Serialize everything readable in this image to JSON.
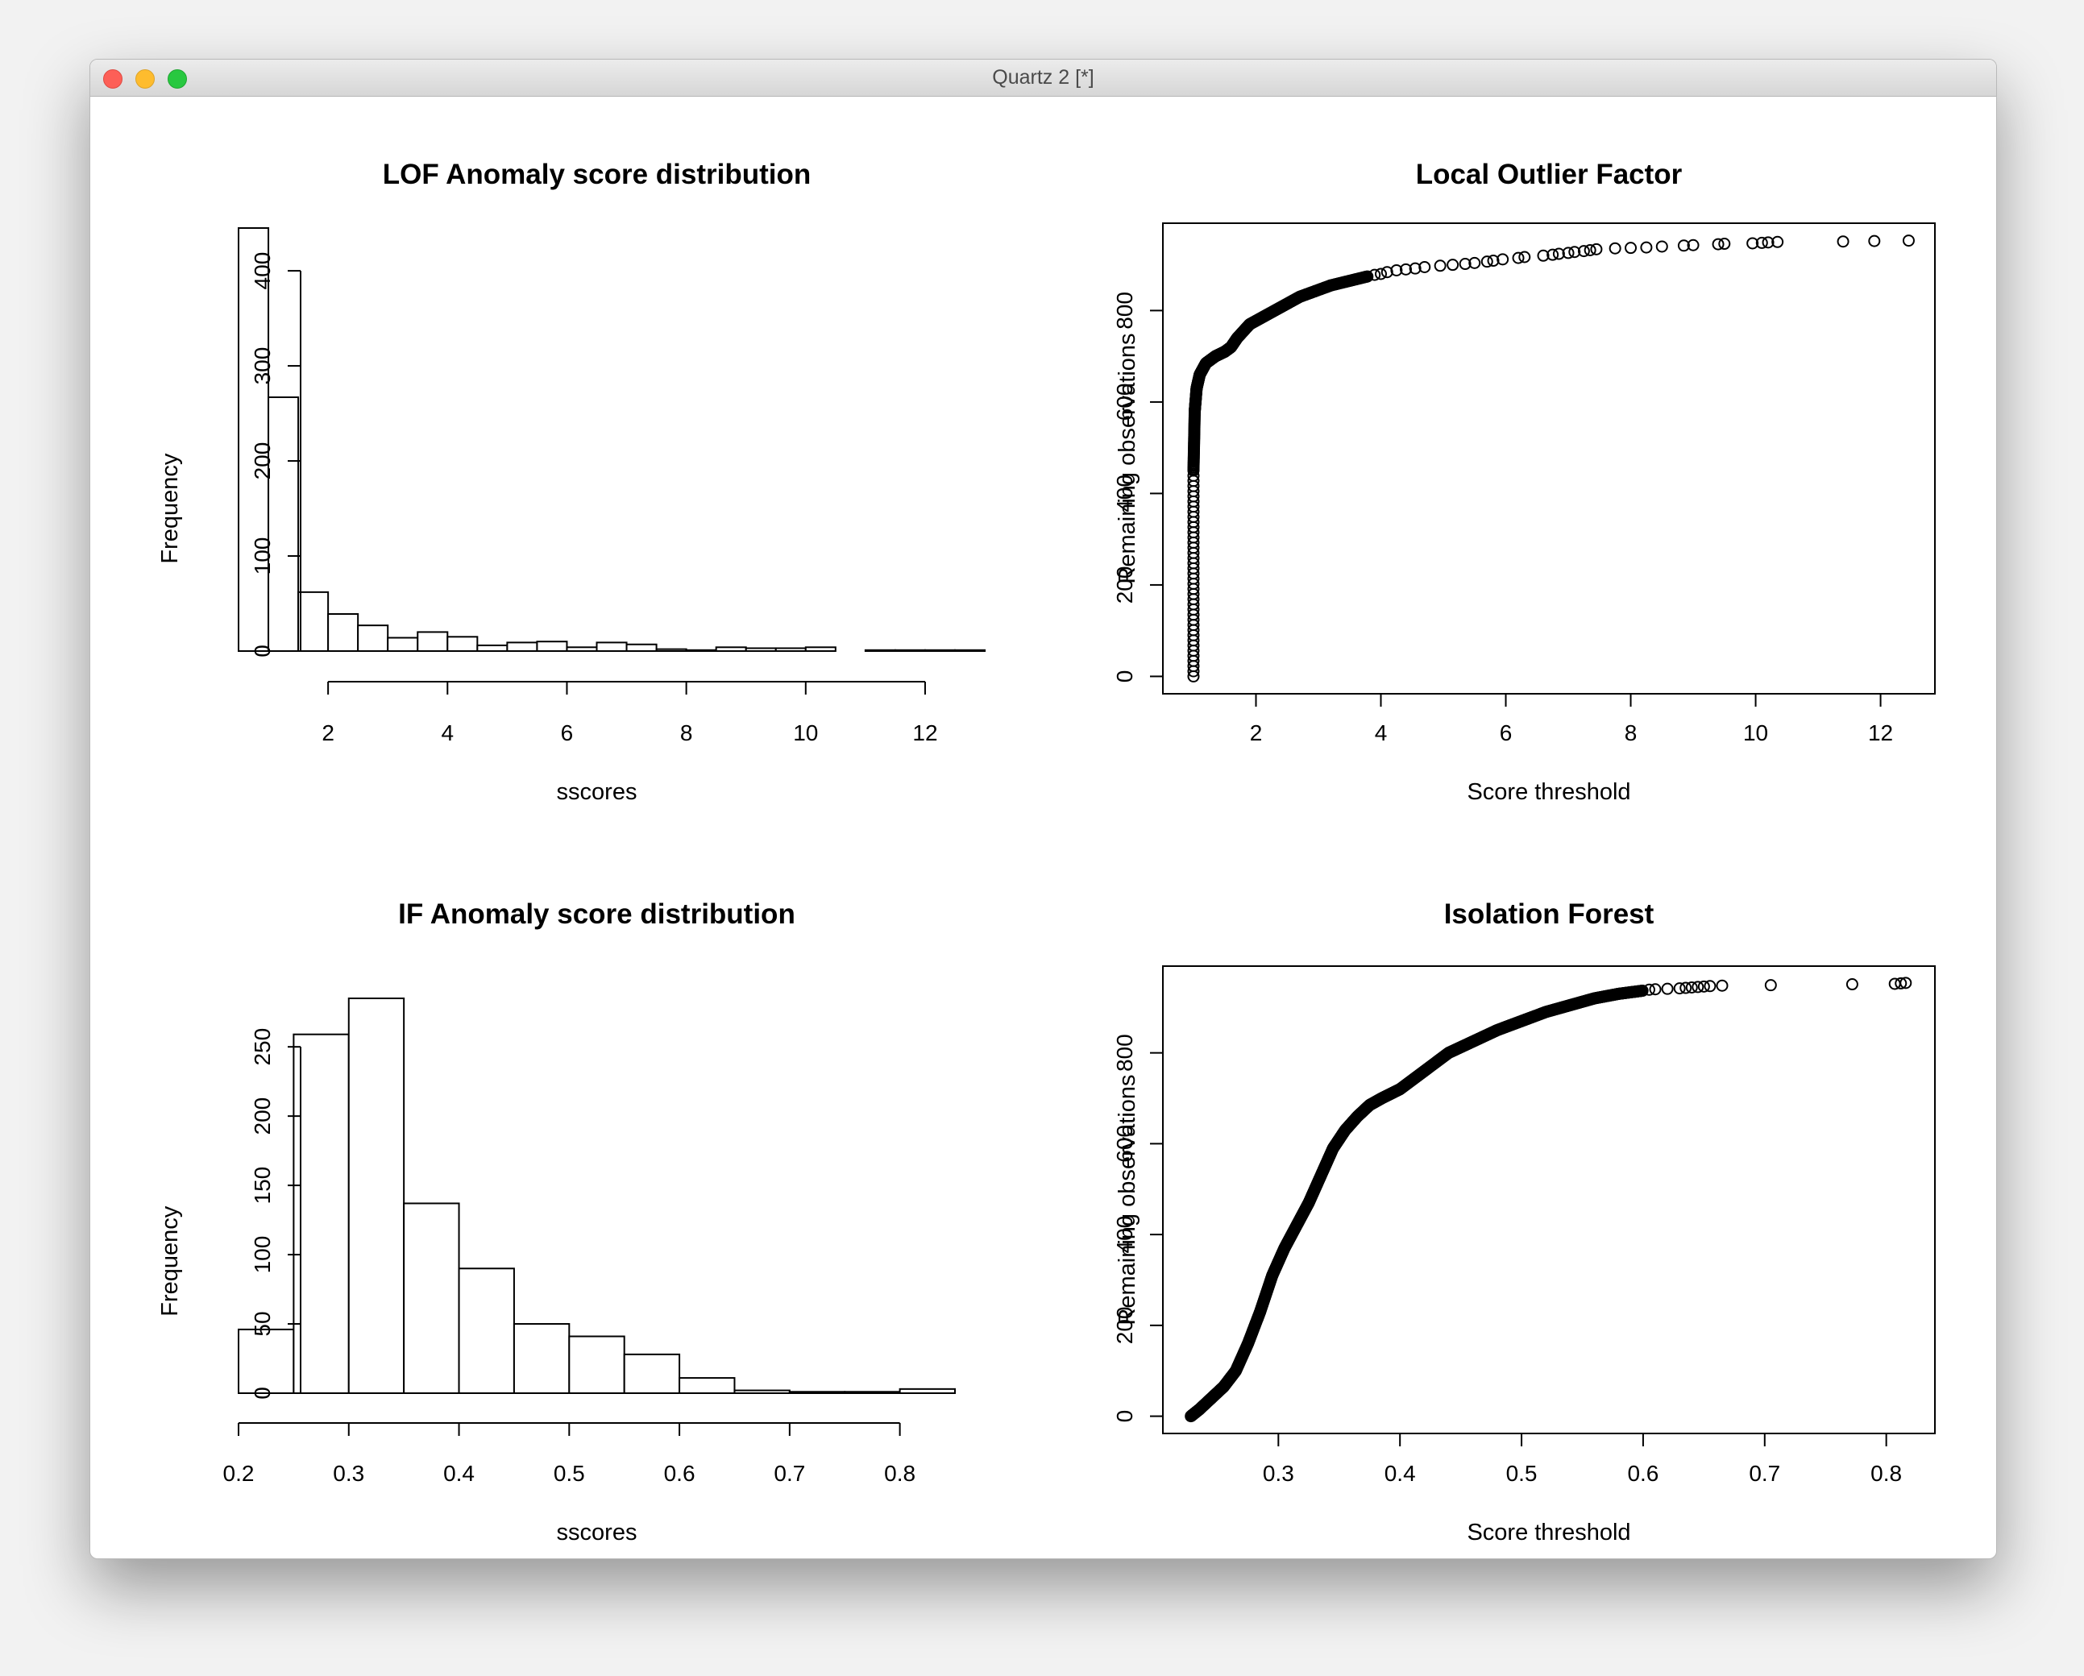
{
  "window": {
    "title": "Quartz 2 [*]",
    "buttons": [
      "close",
      "minimize",
      "zoom"
    ]
  },
  "chart_data": [
    {
      "type": "bar",
      "title": "LOF Anomaly score distribution",
      "xlabel": "sscores",
      "ylabel": "Frequency",
      "bin_width": 0.5,
      "bin_start": 0.5,
      "values": [
        445,
        267,
        62,
        39,
        27,
        14,
        20,
        15,
        6,
        9,
        10,
        4,
        9,
        7,
        2,
        1,
        4,
        3,
        3,
        4,
        0,
        1,
        1,
        1,
        1
      ],
      "x_ticks": [
        2,
        4,
        6,
        8,
        10,
        12
      ],
      "y_ticks": [
        0,
        100,
        200,
        300,
        400
      ],
      "xlim": [
        0.5,
        12.5
      ],
      "ylim": [
        0,
        445
      ]
    },
    {
      "type": "scatter",
      "title": "Local Outlier Factor",
      "xlabel": "Score threshold",
      "ylabel": "Remaining observations",
      "curve_x": [
        1.0,
        1.0,
        1.02,
        1.05,
        1.1,
        1.2,
        1.35,
        1.5,
        1.6,
        1.7,
        1.9,
        2.3,
        2.7,
        3.2,
        3.8
      ],
      "curve_y": [
        0,
        450,
        580,
        630,
        660,
        685,
        700,
        710,
        720,
        740,
        770,
        800,
        830,
        855,
        875
      ],
      "sparse_points": [
        [
          3.9,
          878
        ],
        [
          4.0,
          880
        ],
        [
          4.1,
          884
        ],
        [
          4.25,
          888
        ],
        [
          4.4,
          890
        ],
        [
          4.55,
          892
        ],
        [
          4.7,
          895
        ],
        [
          4.95,
          898
        ],
        [
          5.15,
          900
        ],
        [
          5.35,
          902
        ],
        [
          5.5,
          904
        ],
        [
          5.7,
          907
        ],
        [
          5.8,
          909
        ],
        [
          5.95,
          912
        ],
        [
          6.2,
          915
        ],
        [
          6.3,
          917
        ],
        [
          6.6,
          920
        ],
        [
          6.75,
          922
        ],
        [
          6.85,
          924
        ],
        [
          7.0,
          926
        ],
        [
          7.1,
          928
        ],
        [
          7.25,
          930
        ],
        [
          7.35,
          932
        ],
        [
          7.45,
          934
        ],
        [
          7.75,
          936
        ],
        [
          8.0,
          937
        ],
        [
          8.25,
          938
        ],
        [
          8.5,
          940
        ],
        [
          8.85,
          942
        ],
        [
          9.0,
          943
        ],
        [
          9.4,
          945
        ],
        [
          9.5,
          946
        ],
        [
          9.95,
          947
        ],
        [
          10.1,
          948
        ],
        [
          10.2,
          949
        ],
        [
          10.35,
          950
        ],
        [
          11.4,
          951
        ],
        [
          11.9,
          952
        ],
        [
          12.45,
          953
        ]
      ],
      "x_ticks": [
        2,
        4,
        6,
        8,
        10,
        12
      ],
      "y_ticks": [
        0,
        200,
        400,
        600,
        800
      ],
      "xlim": [
        0.51,
        12.87
      ],
      "ylim": [
        -38,
        991
      ]
    },
    {
      "type": "bar",
      "title": "IF Anomaly score distribution",
      "xlabel": "sscores",
      "ylabel": "Frequency",
      "bin_width": 0.05,
      "bin_start": 0.2,
      "values": [
        46,
        259,
        285,
        137,
        90,
        50,
        41,
        28,
        11,
        2,
        1,
        1,
        3
      ],
      "x_ticks": [
        0.2,
        0.3,
        0.4,
        0.5,
        0.6,
        0.7,
        0.8
      ],
      "y_ticks": [
        0,
        50,
        100,
        150,
        200,
        250
      ],
      "xlim": [
        0.2,
        0.85
      ],
      "ylim": [
        0,
        285
      ]
    },
    {
      "type": "scatter",
      "title": "Isolation Forest",
      "xlabel": "Score threshold",
      "ylabel": "Remaining observations",
      "curve_x": [
        0.228,
        0.235,
        0.245,
        0.255,
        0.265,
        0.275,
        0.285,
        0.295,
        0.305,
        0.315,
        0.325,
        0.335,
        0.345,
        0.355,
        0.365,
        0.375,
        0.385,
        0.4,
        0.42,
        0.44,
        0.46,
        0.48,
        0.5,
        0.52,
        0.54,
        0.56,
        0.58,
        0.6
      ],
      "curve_y": [
        0,
        15,
        40,
        65,
        100,
        160,
        230,
        310,
        370,
        420,
        470,
        530,
        590,
        630,
        660,
        685,
        700,
        720,
        760,
        800,
        825,
        850,
        870,
        890,
        905,
        920,
        930,
        937
      ],
      "sparse_points": [
        [
          0.605,
          939
        ],
        [
          0.61,
          940
        ],
        [
          0.62,
          941
        ],
        [
          0.63,
          942
        ],
        [
          0.635,
          943
        ],
        [
          0.64,
          944
        ],
        [
          0.645,
          945
        ],
        [
          0.65,
          946
        ],
        [
          0.655,
          947
        ],
        [
          0.665,
          948
        ],
        [
          0.705,
          949
        ],
        [
          0.772,
          951
        ],
        [
          0.807,
          952
        ],
        [
          0.812,
          953
        ],
        [
          0.816,
          954
        ]
      ],
      "x_ticks": [
        0.3,
        0.4,
        0.5,
        0.6,
        0.7,
        0.8
      ],
      "y_ticks": [
        0,
        200,
        400,
        600,
        800
      ],
      "xlim": [
        0.205,
        0.84
      ],
      "ylim": [
        -38,
        991
      ]
    }
  ]
}
